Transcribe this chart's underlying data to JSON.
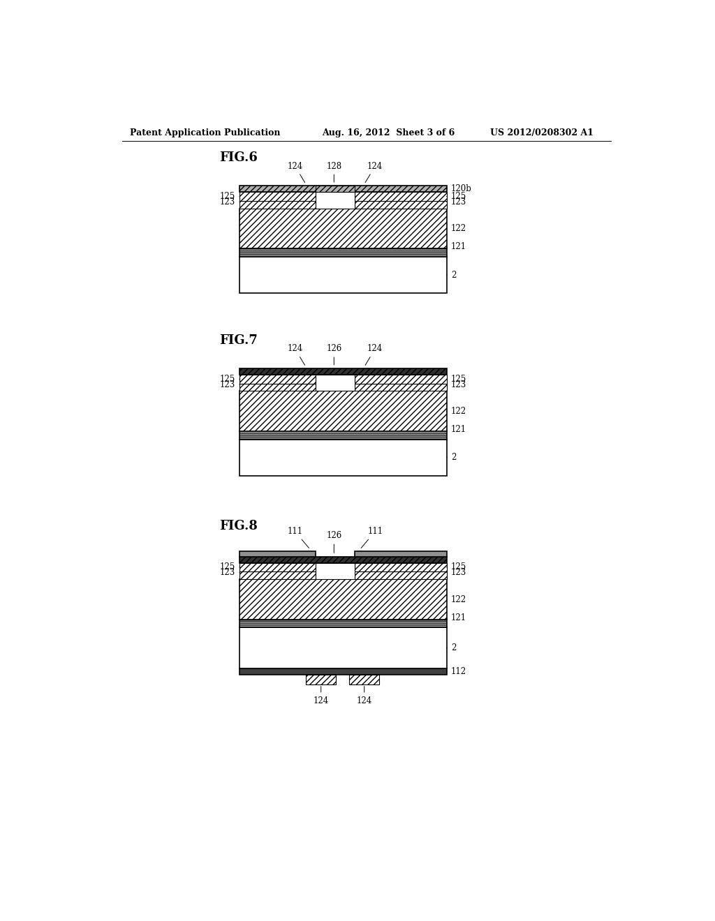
{
  "header_left": "Patent Application Publication",
  "header_center": "Aug. 16, 2012  Sheet 3 of 6",
  "header_right": "US 2012/0208302 A1",
  "fig6_title": "FIG.6",
  "fig7_title": "FIG.7",
  "fig8_title": "FIG.8",
  "bg_color": "#ffffff",
  "line_color": "#000000"
}
